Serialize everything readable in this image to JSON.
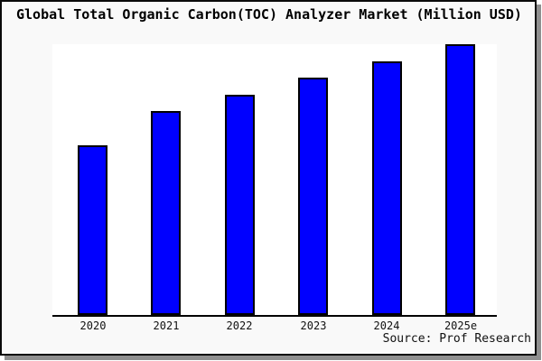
{
  "window": {
    "background": "#f9f9f9",
    "border_color": "#0a0a0a",
    "shadow_color": "#8f8f8f",
    "plot_background": "#ffffff"
  },
  "title": "Global Total Organic Carbon(TOC) Analyzer Market (Million USD)",
  "source": "Source: Prof Research",
  "chart_data": {
    "type": "bar",
    "title": "Global Total Organic Carbon(TOC) Analyzer Market (Million USD)",
    "categories": [
      "2020",
      "2021",
      "2022",
      "2023",
      "2024",
      "2025e"
    ],
    "values": [
      62.7,
      75.2,
      81.5,
      87.7,
      93.7,
      100
    ],
    "value_note": "No y-axis or gridlines shown in source image; values are relative bar heights normalized so the tallest bar (2025e) = 100",
    "xlabel": "",
    "ylabel": "",
    "ylim": [
      0,
      100
    ],
    "grid": false,
    "legend": false,
    "y_axis_visible": false,
    "bar_color": "#0000ff",
    "bar_border_color": "#000000",
    "axis_color": "#000000",
    "source": "Source: Prof Research"
  }
}
